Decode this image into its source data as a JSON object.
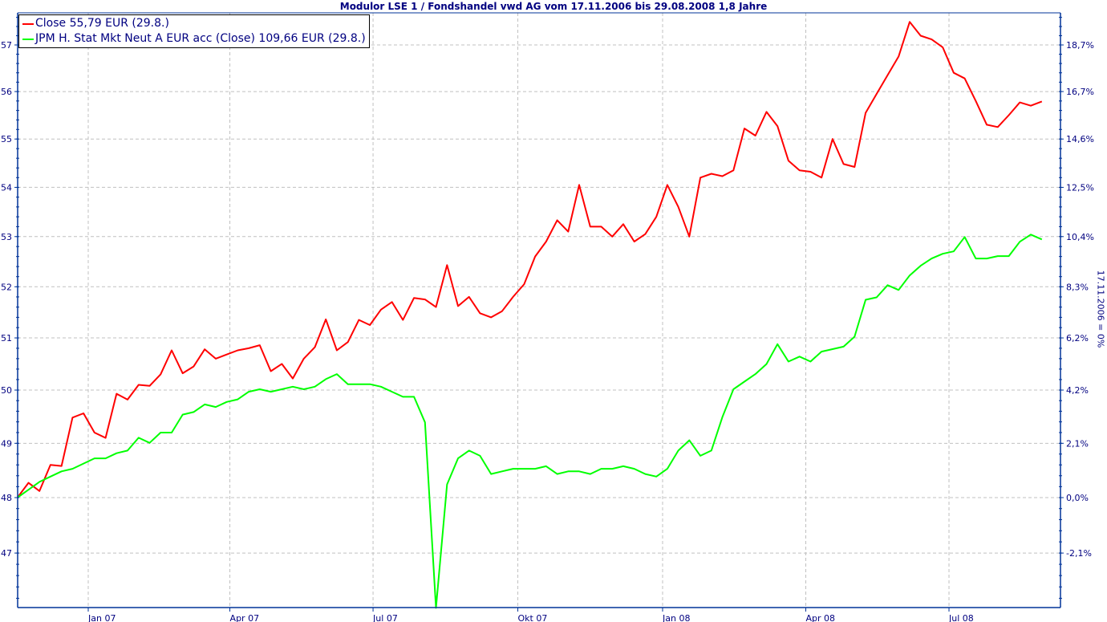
{
  "chart_data": {
    "type": "line",
    "title": "Modulor LSE 1 / Fondshandel vwd AG vom 17.11.2006 bis 29.08.2008 1,8 Jahre",
    "start_date": "2006-11-17",
    "end_date": "2008-08-29",
    "y_scale": "log",
    "ylim": [
      46.0,
      57.7
    ],
    "grid": true,
    "legend_position": "top-left",
    "left_axis_ticks": [
      "47",
      "48",
      "49",
      "50",
      "51",
      "52",
      "53",
      "54",
      "55",
      "56",
      "57"
    ],
    "right_axis_ticks": [
      "-2,1%",
      "0,0%",
      "2,1%",
      "4,2%",
      "6,2%",
      "8,3%",
      "10,4%",
      "12,5%",
      "14,6%",
      "16,7%",
      "18,7%"
    ],
    "right_axis_label": "17.11.2006 = 0%",
    "x_ticks": [
      {
        "label": "Jan 07",
        "date": "2007-01-01"
      },
      {
        "label": "Apr 07",
        "date": "2007-04-01"
      },
      {
        "label": "Jul 07",
        "date": "2007-07-01"
      },
      {
        "label": "Okt 07",
        "date": "2007-10-01"
      },
      {
        "label": "Jan 08",
        "date": "2008-01-01"
      },
      {
        "label": "Apr 08",
        "date": "2008-04-01"
      },
      {
        "label": "Jul 08",
        "date": "2008-07-01"
      }
    ],
    "series": [
      {
        "name": "Close 55,79 EUR (29.8.)",
        "color": "#ff0000",
        "unit": "EUR",
        "values": [
          48.0,
          48.27,
          48.12,
          48.6,
          48.58,
          49.48,
          49.56,
          49.2,
          49.1,
          49.93,
          49.82,
          50.1,
          50.08,
          50.3,
          50.76,
          50.32,
          50.45,
          50.78,
          50.6,
          50.68,
          50.76,
          50.8,
          50.86,
          50.36,
          50.5,
          50.22,
          50.6,
          50.82,
          51.36,
          50.76,
          50.92,
          51.35,
          51.25,
          51.55,
          51.7,
          51.35,
          51.78,
          51.75,
          51.6,
          52.43,
          51.62,
          51.8,
          51.48,
          51.4,
          51.52,
          51.8,
          52.05,
          52.6,
          52.9,
          53.33,
          53.1,
          54.05,
          53.2,
          53.2,
          53.0,
          53.25,
          52.9,
          53.05,
          53.4,
          54.05,
          53.6,
          53.0,
          54.2,
          54.28,
          54.23,
          54.35,
          55.22,
          55.07,
          55.57,
          55.27,
          54.55,
          54.35,
          54.32,
          54.2,
          55.0,
          54.48,
          54.42,
          55.55,
          55.95,
          56.35,
          56.75,
          57.5,
          57.2,
          57.12,
          56.95,
          56.4,
          56.28,
          55.8,
          55.3,
          55.25,
          55.5,
          55.77,
          55.7,
          55.79
        ]
      },
      {
        "name": "JPM H. Stat Mkt Neut A EUR acc (Close) 109,66 EUR (29.8.)",
        "color": "#00ff00",
        "unit": "percent since 17.11.2006",
        "values": [
          0,
          0.3,
          0.6,
          0.8,
          1.0,
          1.1,
          1.3,
          1.5,
          1.5,
          1.7,
          1.8,
          2.3,
          2.1,
          2.5,
          2.5,
          3.2,
          3.3,
          3.6,
          3.5,
          3.7,
          3.8,
          4.1,
          4.2,
          4.1,
          4.2,
          4.3,
          4.2,
          4.3,
          4.6,
          4.8,
          4.4,
          4.4,
          4.4,
          4.3,
          4.1,
          3.9,
          3.9,
          2.9,
          -4.1,
          0.5,
          1.5,
          1.8,
          1.6,
          0.9,
          1.0,
          1.1,
          1.1,
          1.1,
          1.2,
          0.9,
          1.0,
          1.0,
          0.9,
          1.1,
          1.1,
          1.2,
          1.1,
          0.9,
          0.8,
          1.1,
          1.8,
          2.2,
          1.6,
          1.8,
          3.1,
          4.2,
          4.5,
          4.8,
          5.2,
          6.0,
          5.3,
          5.5,
          5.3,
          5.7,
          5.8,
          5.9,
          6.3,
          7.8,
          7.9,
          8.4,
          8.2,
          8.8,
          9.2,
          9.5,
          9.7,
          9.8,
          10.4,
          9.5,
          9.5,
          9.6,
          9.6,
          10.2,
          10.5,
          10.3
        ]
      }
    ]
  }
}
